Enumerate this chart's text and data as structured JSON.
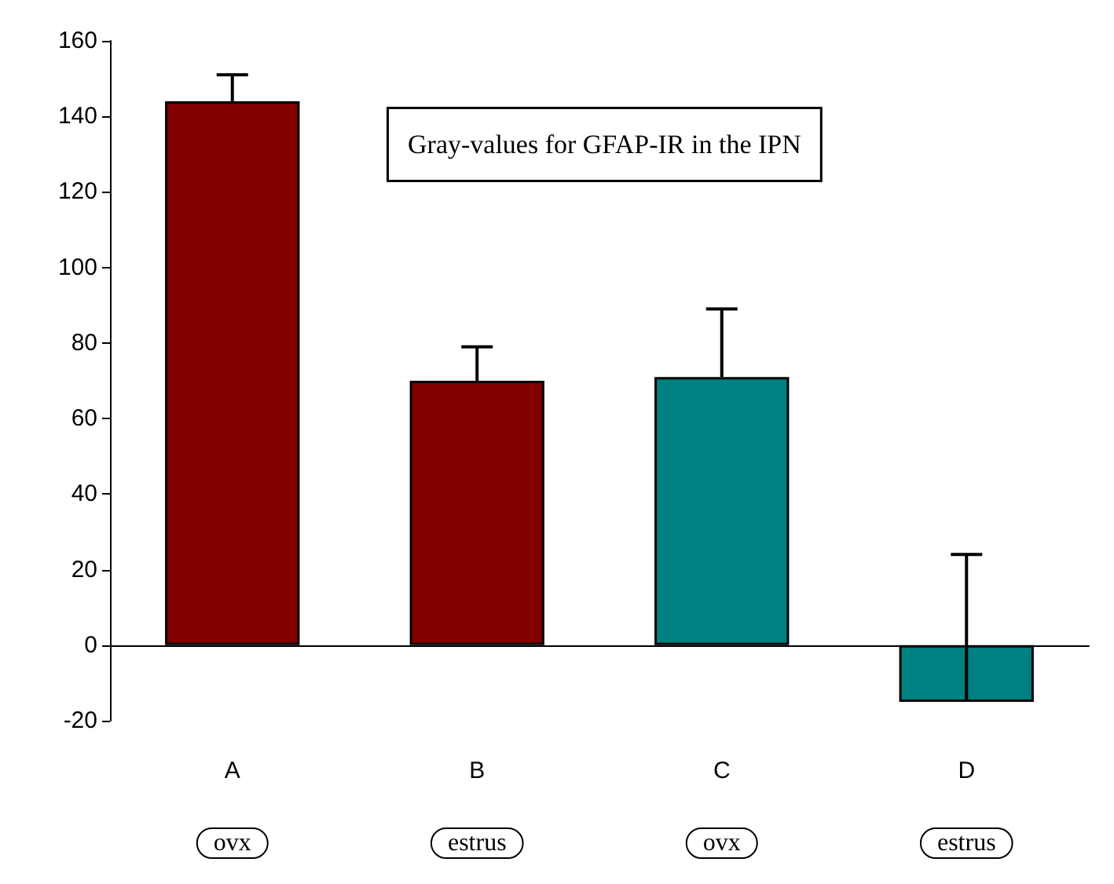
{
  "chart_data": {
    "type": "bar",
    "title": "Gray-values for GFAP-IR in the IPN",
    "categories": [
      "A",
      "B",
      "C",
      "D"
    ],
    "values": [
      144,
      70,
      71,
      -15
    ],
    "colors": [
      "#800000",
      "#800000",
      "#008080",
      "#008080"
    ],
    "errors": [
      [
        144,
        151
      ],
      [
        70,
        79
      ],
      [
        71,
        89
      ],
      [
        -15,
        24
      ]
    ],
    "ylim": [
      -20,
      160
    ],
    "yticks": [
      -20,
      0,
      20,
      40,
      60,
      80,
      100,
      120,
      140,
      160
    ],
    "annotations": [
      "ovx",
      "estrus",
      "ovx",
      "estrus"
    ]
  }
}
